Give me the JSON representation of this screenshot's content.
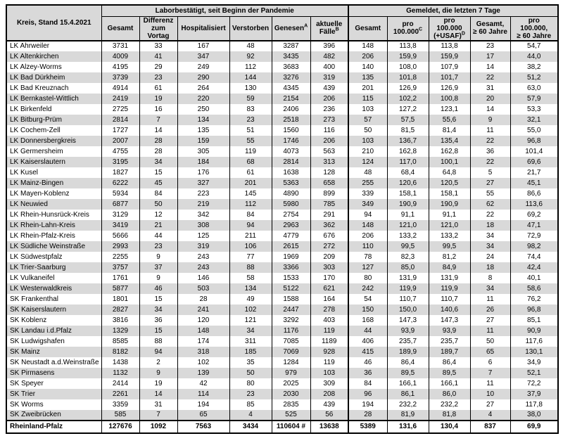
{
  "colors": {
    "header_background": "#d9d9d9",
    "stripe_background": "#d9d9d9",
    "row_background": "#ffffff",
    "border": "#000000",
    "text": "#000000"
  },
  "table": {
    "corner_header": "Kreis, Stand 15.4.2021",
    "groups": [
      {
        "label": "Laborbestätigt, seit Beginn der Pandemie",
        "colspan": 6
      },
      {
        "label": "Gemeldet, die letzten 7 Tage",
        "colspan": 5
      }
    ],
    "columns": [
      {
        "key": "gesamt",
        "label": "Gesamt",
        "lines": [
          "Gesamt"
        ]
      },
      {
        "key": "differenz-vortag",
        "label": "Differenz zum Vortag",
        "lines": [
          "Differenz",
          "zum",
          "Vortag"
        ]
      },
      {
        "key": "hospitalisiert",
        "label": "Hospitalisiert",
        "lines": [
          "Hospitalisiert"
        ]
      },
      {
        "key": "verstorben",
        "label": "Verstorben",
        "lines": [
          "Verstorben"
        ]
      },
      {
        "key": "genesen",
        "label": "Genesen",
        "lines": [
          "Genesen"
        ],
        "sup": "A"
      },
      {
        "key": "aktuelle-faelle",
        "label": "aktuelle Fälle",
        "lines": [
          "aktuelle",
          "Fälle"
        ],
        "sup": "B"
      },
      {
        "key": "gesamt-7t",
        "label": "Gesamt",
        "lines": [
          "Gesamt"
        ]
      },
      {
        "key": "pro-100000",
        "label": "pro 100.000",
        "lines": [
          "pro",
          "100.000"
        ],
        "sup": "C"
      },
      {
        "key": "pro-100000-usaf",
        "label": "pro 100.000 (+USAF)",
        "lines": [
          "pro",
          "100.000",
          "(+USAF)"
        ],
        "sup": "D"
      },
      {
        "key": "gesamt-60",
        "label": "Gesamt, ≥ 60 Jahre",
        "lines": [
          "Gesamt,",
          "≥ 60 Jahre"
        ]
      },
      {
        "key": "pro-100000-60",
        "label": "pro 100.000, ≥ 60 Jahre",
        "lines": [
          "pro",
          "100.000,",
          "≥ 60 Jahre"
        ]
      }
    ],
    "rows": [
      {
        "name": "LK Ahrweiler",
        "values": [
          "3731",
          "33",
          "167",
          "48",
          "3287",
          "396",
          "148",
          "113,8",
          "113,8",
          "23",
          "54,7"
        ]
      },
      {
        "name": "LK Altenkirchen",
        "values": [
          "4009",
          "41",
          "347",
          "92",
          "3435",
          "482",
          "206",
          "159,9",
          "159,9",
          "17",
          "44,0"
        ]
      },
      {
        "name": "LK Alzey-Worms",
        "values": [
          "4195",
          "29",
          "249",
          "112",
          "3683",
          "400",
          "140",
          "108,0",
          "107,9",
          "14",
          "38,2"
        ]
      },
      {
        "name": "LK Bad Dürkheim",
        "values": [
          "3739",
          "23",
          "290",
          "144",
          "3276",
          "319",
          "135",
          "101,8",
          "101,7",
          "22",
          "51,2"
        ]
      },
      {
        "name": "LK Bad Kreuznach",
        "values": [
          "4914",
          "61",
          "264",
          "130",
          "4345",
          "439",
          "201",
          "126,9",
          "126,9",
          "31",
          "63,0"
        ]
      },
      {
        "name": "LK Bernkastel-Wittlich",
        "values": [
          "2419",
          "19",
          "220",
          "59",
          "2154",
          "206",
          "115",
          "102,2",
          "100,8",
          "20",
          "57,9"
        ]
      },
      {
        "name": "LK Birkenfeld",
        "values": [
          "2725",
          "16",
          "250",
          "83",
          "2406",
          "236",
          "103",
          "127,2",
          "123,1",
          "14",
          "53,3"
        ]
      },
      {
        "name": "LK Bitburg-Prüm",
        "values": [
          "2814",
          "7",
          "134",
          "23",
          "2518",
          "273",
          "57",
          "57,5",
          "55,6",
          "9",
          "32,1"
        ]
      },
      {
        "name": "LK Cochem-Zell",
        "values": [
          "1727",
          "14",
          "135",
          "51",
          "1560",
          "116",
          "50",
          "81,5",
          "81,4",
          "11",
          "55,0"
        ]
      },
      {
        "name": "LK Donnersbergkreis",
        "values": [
          "2007",
          "28",
          "159",
          "55",
          "1746",
          "206",
          "103",
          "136,7",
          "135,4",
          "22",
          "96,8"
        ]
      },
      {
        "name": "LK Germersheim",
        "values": [
          "4755",
          "28",
          "305",
          "119",
          "4073",
          "563",
          "210",
          "162,8",
          "162,8",
          "36",
          "101,4"
        ]
      },
      {
        "name": "LK Kaiserslautern",
        "values": [
          "3195",
          "34",
          "184",
          "68",
          "2814",
          "313",
          "124",
          "117,0",
          "100,1",
          "22",
          "69,6"
        ]
      },
      {
        "name": "LK Kusel",
        "values": [
          "1827",
          "15",
          "176",
          "61",
          "1638",
          "128",
          "48",
          "68,4",
          "64,8",
          "5",
          "21,7"
        ]
      },
      {
        "name": "LK Mainz-Bingen",
        "values": [
          "6222",
          "45",
          "327",
          "201",
          "5363",
          "658",
          "255",
          "120,6",
          "120,5",
          "27",
          "45,1"
        ]
      },
      {
        "name": "LK Mayen-Koblenz",
        "values": [
          "5934",
          "84",
          "223",
          "145",
          "4890",
          "899",
          "339",
          "158,1",
          "158,1",
          "55",
          "86,6"
        ]
      },
      {
        "name": "LK Neuwied",
        "values": [
          "6877",
          "50",
          "219",
          "112",
          "5980",
          "785",
          "349",
          "190,9",
          "190,9",
          "62",
          "113,6"
        ]
      },
      {
        "name": "LK Rhein-Hunsrück-Kreis",
        "values": [
          "3129",
          "12",
          "342",
          "84",
          "2754",
          "291",
          "94",
          "91,1",
          "91,1",
          "22",
          "69,2"
        ]
      },
      {
        "name": "LK Rhein-Lahn-Kreis",
        "values": [
          "3419",
          "21",
          "308",
          "94",
          "2963",
          "362",
          "148",
          "121,0",
          "121,0",
          "18",
          "47,1"
        ]
      },
      {
        "name": "LK Rhein-Pfalz-Kreis",
        "values": [
          "5666",
          "44",
          "125",
          "211",
          "4779",
          "676",
          "206",
          "133,2",
          "133,2",
          "34",
          "72,9"
        ]
      },
      {
        "name": "LK Südliche Weinstraße",
        "values": [
          "2993",
          "23",
          "319",
          "106",
          "2615",
          "272",
          "110",
          "99,5",
          "99,5",
          "34",
          "98,2"
        ]
      },
      {
        "name": "LK Südwestpfalz",
        "values": [
          "2255",
          "9",
          "243",
          "77",
          "1969",
          "209",
          "78",
          "82,3",
          "81,2",
          "24",
          "74,4"
        ]
      },
      {
        "name": "LK Trier-Saarburg",
        "values": [
          "3757",
          "37",
          "243",
          "88",
          "3366",
          "303",
          "127",
          "85,0",
          "84,9",
          "18",
          "42,4"
        ]
      },
      {
        "name": "LK Vulkaneifel",
        "values": [
          "1761",
          "9",
          "146",
          "58",
          "1533",
          "170",
          "80",
          "131,9",
          "131,9",
          "8",
          "40,1"
        ]
      },
      {
        "name": "LK Westerwaldkreis",
        "values": [
          "5877",
          "46",
          "503",
          "134",
          "5122",
          "621",
          "242",
          "119,9",
          "119,9",
          "34",
          "58,6"
        ]
      },
      {
        "name": "SK Frankenthal",
        "values": [
          "1801",
          "15",
          "28",
          "49",
          "1588",
          "164",
          "54",
          "110,7",
          "110,7",
          "11",
          "76,2"
        ]
      },
      {
        "name": "SK Kaiserslautern",
        "values": [
          "2827",
          "34",
          "241",
          "102",
          "2447",
          "278",
          "150",
          "150,0",
          "140,6",
          "26",
          "96,8"
        ]
      },
      {
        "name": "SK Koblenz",
        "values": [
          "3816",
          "36",
          "120",
          "121",
          "3292",
          "403",
          "168",
          "147,3",
          "147,3",
          "27",
          "85,1"
        ]
      },
      {
        "name": "SK Landau i.d.Pfalz",
        "values": [
          "1329",
          "15",
          "148",
          "34",
          "1176",
          "119",
          "44",
          "93,9",
          "93,9",
          "11",
          "90,9"
        ]
      },
      {
        "name": "SK Ludwigshafen",
        "values": [
          "8585",
          "88",
          "174",
          "311",
          "7085",
          "1189",
          "406",
          "235,7",
          "235,7",
          "50",
          "117,6"
        ]
      },
      {
        "name": "SK Mainz",
        "values": [
          "8182",
          "94",
          "318",
          "185",
          "7069",
          "928",
          "415",
          "189,9",
          "189,7",
          "65",
          "130,1"
        ]
      },
      {
        "name": "SK Neustadt a.d.Weinstraße",
        "values": [
          "1438",
          "2",
          "102",
          "35",
          "1284",
          "119",
          "46",
          "86,4",
          "86,4",
          "6",
          "34,9"
        ]
      },
      {
        "name": "SK Pirmasens",
        "values": [
          "1132",
          "9",
          "139",
          "50",
          "979",
          "103",
          "36",
          "89,5",
          "89,5",
          "7",
          "52,1"
        ]
      },
      {
        "name": "SK Speyer",
        "values": [
          "2414",
          "19",
          "42",
          "80",
          "2025",
          "309",
          "84",
          "166,1",
          "166,1",
          "11",
          "72,2"
        ]
      },
      {
        "name": "SK Trier",
        "values": [
          "2261",
          "14",
          "114",
          "23",
          "2030",
          "208",
          "96",
          "86,1",
          "86,0",
          "10",
          "37,9"
        ]
      },
      {
        "name": "SK Worms",
        "values": [
          "3359",
          "31",
          "194",
          "85",
          "2835",
          "439",
          "194",
          "232,2",
          "232,2",
          "27",
          "117,8"
        ]
      },
      {
        "name": "SK Zweibrücken",
        "values": [
          "585",
          "7",
          "65",
          "4",
          "525",
          "56",
          "28",
          "81,9",
          "81,8",
          "4",
          "38,0"
        ]
      }
    ],
    "total": {
      "name": "Rheinland-Pfalz",
      "values": [
        "127676",
        "1092",
        "7563",
        "3434",
        "110604 #",
        "13638",
        "5389",
        "131,6",
        "130,4",
        "837",
        "69,9"
      ]
    }
  }
}
